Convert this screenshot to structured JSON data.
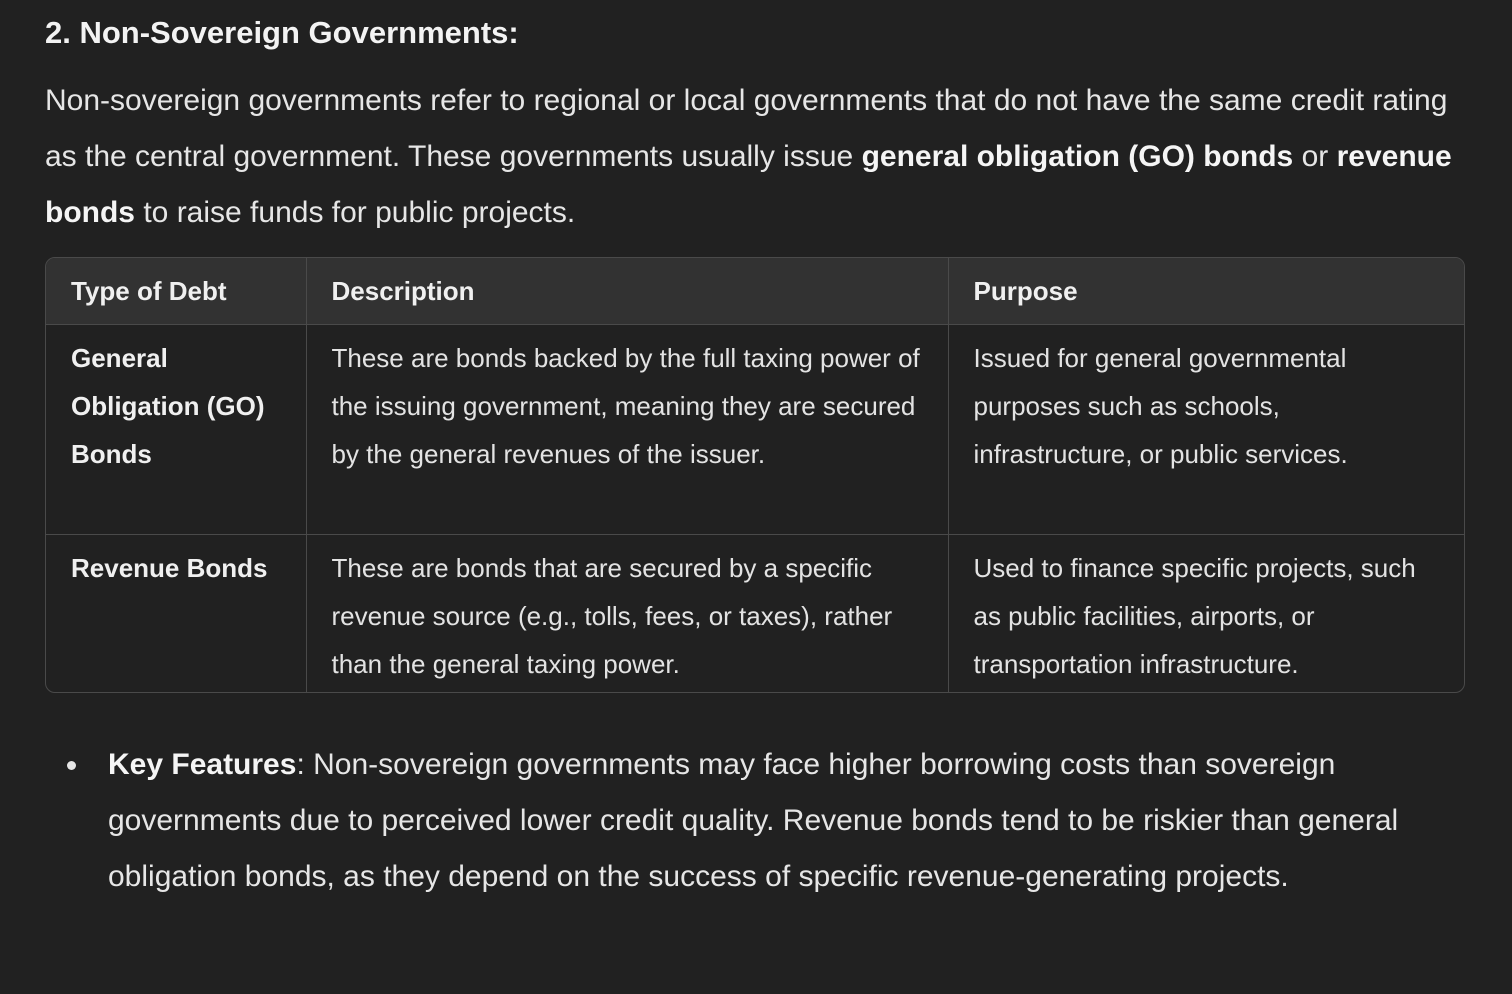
{
  "section": {
    "heading": "2. Non-Sovereign Governments:"
  },
  "intro": {
    "part1": "Non-sovereign governments refer to regional or local governments that do not have the same credit rating as the central government. These governments usually issue ",
    "bold1": "general obligation (GO) bonds",
    "part2": " or ",
    "bold2": "revenue bonds",
    "part3": " to raise funds for public projects."
  },
  "table": {
    "headers": [
      "Type of Debt",
      "Description",
      "Purpose"
    ],
    "rows": [
      {
        "type": "General Obligation (GO) Bonds",
        "description": "These are bonds backed by the full taxing power of the issuing government, meaning they are secured by the general revenues of the issuer.",
        "purpose": "Issued for general governmental purposes such as schools, infrastructure, or public services."
      },
      {
        "type": "Revenue Bonds",
        "description": "These are bonds that are secured by a specific revenue source (e.g., tolls, fees, or taxes), rather than the general taxing power.",
        "purpose": "Used to finance specific projects, such as public facilities, airports, or transportation infrastructure."
      }
    ]
  },
  "key_features": {
    "label": "Key Features",
    "separator": ": ",
    "text": "Non-sovereign governments may face higher borrowing costs than sovereign governments due to perceived lower credit quality. Revenue bonds tend to be riskier than general obligation bonds, as they depend on the success of specific revenue-generating projects."
  }
}
